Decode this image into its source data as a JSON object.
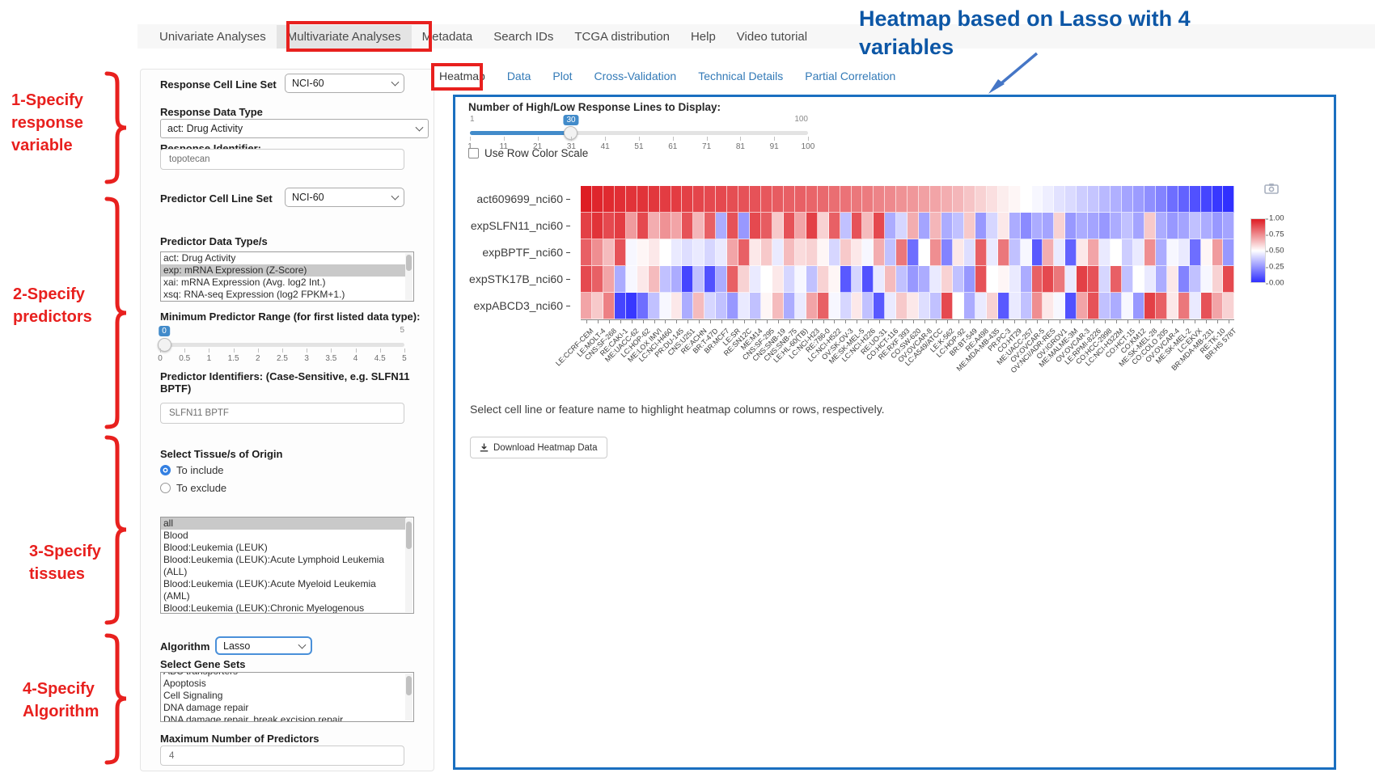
{
  "colors": {
    "accent_blue": "#337ab7",
    "slider_blue": "#428bca",
    "panel_border_blue": "#1a6fc0",
    "annotation_red": "#e8201e",
    "annotation_blue": "#0d57a6",
    "heatmap_max_red": "#de1c23",
    "heatmap_min_blue": "#3030ff"
  },
  "nav": {
    "items": [
      "Univariate Analyses",
      "Multivariate Analyses",
      "Metadata",
      "Search IDs",
      "TCGA distribution",
      "Help",
      "Video tutorial"
    ],
    "active_index": 1
  },
  "annotations": {
    "step1": "1-Specify\nresponse\nvariable",
    "step2": "2-Specify\npredictors",
    "step3": "3-Specify\ntissues",
    "step4": "4-Specify\nAlgorithm",
    "heatmap_note": "Heatmap based on Lasso with 4\nvariables"
  },
  "sidebar": {
    "response_cell_line_set": {
      "label": "Response Cell Line Set",
      "value": "NCI-60"
    },
    "response_data_type": {
      "label": "Response Data Type",
      "value": "act: Drug Activity"
    },
    "response_identifier": {
      "label": "Response Identifier:",
      "value": "topotecan"
    },
    "predictor_cell_line_set": {
      "label": "Predictor Cell Line Set",
      "value": "NCI-60"
    },
    "predictor_data_types": {
      "label": "Predictor Data Type/s",
      "options": [
        "act: Drug Activity",
        "exp: mRNA Expression (Z-Score)",
        "xai: mRNA Expression (Avg. log2 Int.)",
        "xsq: RNA-seq Expression (log2 FPKM+1.)"
      ],
      "selected": "exp: mRNA Expression (Z-Score)"
    },
    "min_predictor_range": {
      "label": "Minimum Predictor Range (for first listed data type):",
      "value": "0",
      "max_label": "5",
      "ticks": [
        "0",
        "0.5",
        "1",
        "1.5",
        "2",
        "2.5",
        "3",
        "3.5",
        "4",
        "4.5",
        "5"
      ]
    },
    "predictor_identifiers": {
      "label": "Predictor Identifiers: (Case-Sensitive, e.g. SLFN11 BPTF)",
      "value": "SLFN11 BPTF"
    },
    "tissue": {
      "label": "Select Tissue/s of Origin",
      "radios": [
        {
          "label": "To include",
          "selected": true
        },
        {
          "label": "To exclude",
          "selected": false
        }
      ],
      "options": [
        "all",
        "Blood",
        "Blood:Leukemia (LEUK)",
        "Blood:Leukemia (LEUK):Acute Lymphoid Leukemia (ALL)",
        "Blood:Leukemia (LEUK):Acute Myeloid Leukemia (AML)",
        "Blood:Leukemia (LEUK):Chronic Myelogenous Leukemia (CML)"
      ],
      "selected": "all"
    },
    "algorithm": {
      "label": "Algorithm",
      "value": "Lasso"
    },
    "gene_sets": {
      "label": "Select Gene Sets",
      "options": [
        "ABC transporters",
        "Apoptosis",
        "Cell Signaling",
        "DNA damage repair",
        "DNA damage repair, break excision repair"
      ],
      "first_clipped": true
    },
    "max_predictors": {
      "label": "Maximum Number of Predictors",
      "value": "4"
    }
  },
  "main": {
    "tabs": [
      "Heatmap",
      "Data",
      "Plot",
      "Cross-Validation",
      "Technical Details",
      "Partial Correlation"
    ],
    "active_tab_index": 0,
    "slider": {
      "label": "Number of High/Low Response Lines to Display:",
      "min_label": "1",
      "max_label": "100",
      "value": "30",
      "ticks": [
        "1",
        "11",
        "21",
        "31",
        "41",
        "51",
        "61",
        "71",
        "81",
        "91",
        "100"
      ]
    },
    "row_color_checkbox_label": "Use Row Color Scale",
    "note": "Select cell line or feature name to highlight heatmap columns or rows, respectively.",
    "download_button_label": "Download Heatmap Data",
    "camera_icon": "camera-icon"
  },
  "chart_data": {
    "type": "heatmap",
    "rows": [
      "act609699_nci60",
      "expSLFN11_nci60",
      "expBPTF_nci60",
      "expSTK17B_nci60",
      "expABCD3_nci60"
    ],
    "columns": [
      "LE:CCRF-CEM",
      "LE:MOLT-4",
      "CNS:SF-268",
      "RE:CAKI-1",
      "ME:UACC-62",
      "LC:HOP-62",
      "ME:LOX IMVI",
      "LC:NCI-H460",
      "PR:DU-145",
      "CNS:U251",
      "RE:ACHN",
      "BR:T-47D",
      "BR:MCF7",
      "LE:SR",
      "RE:SN12C",
      "ME:M14",
      "CNS:SF-295",
      "CNS:SNB-19",
      "CNS:SNB-75",
      "LE:HL-60(TB)",
      "LC:NCI-H23",
      "RE:786-0",
      "LC:NCI-H522",
      "OV:SK-OV-3",
      "ME:SK-MEL-5",
      "LC:NCI-H226",
      "RE:UO-31",
      "CO:HCT-116",
      "RE:RXF 393",
      "CO:SW-620",
      "OV:OVCAR-8",
      "LC:A549/ATCC",
      "LE:K-562",
      "LC:HOP-92",
      "BR:BT-549",
      "RE:A498",
      "ME:MDA-MB-435",
      "PR:PC-3",
      "CO:HT29",
      "ME:UACC-257",
      "OV:OVCAR-5",
      "OV:NCI/ADR-RES",
      "OV:IGROV1",
      "ME:MALME-3M",
      "OV:OVCAR-3",
      "LE:RPMI-8226",
      "CO:HCC-2998",
      "LC:NCI-H322M",
      "CO:HCT-15",
      "CO:KM12",
      "ME:SK-MEL-28",
      "CO:COLO 205",
      "OV:OVCAR-4",
      "ME:SK-MEL-2",
      "LC:EKVX",
      "BR:MDA-MB-231",
      "RE:TK-10",
      "BR:HS 578T"
    ],
    "values": [
      [
        1.0,
        0.98,
        0.97,
        0.96,
        0.95,
        0.95,
        0.94,
        0.93,
        0.93,
        0.92,
        0.91,
        0.9,
        0.9,
        0.89,
        0.88,
        0.88,
        0.87,
        0.86,
        0.85,
        0.85,
        0.84,
        0.83,
        0.82,
        0.81,
        0.8,
        0.79,
        0.77,
        0.76,
        0.74,
        0.73,
        0.71,
        0.7,
        0.68,
        0.66,
        0.63,
        0.6,
        0.57,
        0.54,
        0.52,
        0.5,
        0.48,
        0.46,
        0.43,
        0.41,
        0.38,
        0.36,
        0.33,
        0.31,
        0.28,
        0.26,
        0.23,
        0.2,
        0.15,
        0.12,
        0.08,
        0.05,
        0.02,
        0.0
      ],
      [
        0.92,
        0.95,
        0.9,
        0.93,
        0.72,
        0.9,
        0.68,
        0.74,
        0.7,
        0.88,
        0.66,
        0.85,
        0.3,
        0.88,
        0.25,
        0.9,
        0.86,
        0.62,
        0.88,
        0.7,
        0.92,
        0.6,
        0.85,
        0.35,
        0.88,
        0.65,
        0.9,
        0.3,
        0.4,
        0.68,
        0.28,
        0.66,
        0.3,
        0.35,
        0.62,
        0.25,
        0.4,
        0.55,
        0.3,
        0.22,
        0.3,
        0.28,
        0.6,
        0.25,
        0.3,
        0.28,
        0.25,
        0.3,
        0.35,
        0.28,
        0.62,
        0.3,
        0.25,
        0.28,
        0.35,
        0.3,
        0.25,
        0.28
      ],
      [
        0.85,
        0.75,
        0.65,
        0.88,
        0.48,
        0.52,
        0.55,
        0.5,
        0.45,
        0.42,
        0.45,
        0.4,
        0.45,
        0.7,
        0.85,
        0.55,
        0.62,
        0.45,
        0.65,
        0.58,
        0.6,
        0.52,
        0.4,
        0.62,
        0.55,
        0.48,
        0.68,
        0.35,
        0.8,
        0.15,
        0.5,
        0.75,
        0.2,
        0.55,
        0.42,
        0.85,
        0.45,
        0.8,
        0.35,
        0.48,
        0.1,
        0.68,
        0.45,
        0.12,
        0.55,
        0.7,
        0.45,
        0.5,
        0.38,
        0.45,
        0.75,
        0.3,
        0.48,
        0.45,
        0.15,
        0.52,
        0.72,
        0.25
      ],
      [
        0.9,
        0.85,
        0.7,
        0.3,
        0.48,
        0.55,
        0.65,
        0.35,
        0.3,
        0.05,
        0.35,
        0.08,
        0.3,
        0.85,
        0.6,
        0.45,
        0.5,
        0.55,
        0.4,
        0.48,
        0.35,
        0.6,
        0.52,
        0.1,
        0.4,
        0.08,
        0.45,
        0.65,
        0.35,
        0.25,
        0.3,
        0.45,
        0.6,
        0.35,
        0.25,
        0.88,
        0.5,
        0.52,
        0.45,
        0.3,
        0.85,
        0.9,
        0.8,
        0.45,
        0.92,
        0.88,
        0.4,
        0.85,
        0.35,
        0.5,
        0.45,
        0.3,
        0.55,
        0.2,
        0.35,
        0.48,
        0.6,
        0.9
      ],
      [
        0.7,
        0.62,
        0.78,
        0.05,
        0.02,
        0.15,
        0.35,
        0.48,
        0.55,
        0.3,
        0.65,
        0.4,
        0.35,
        0.25,
        0.45,
        0.35,
        0.52,
        0.65,
        0.3,
        0.45,
        0.7,
        0.85,
        0.48,
        0.4,
        0.55,
        0.35,
        0.1,
        0.45,
        0.62,
        0.55,
        0.42,
        0.35,
        0.9,
        0.5,
        0.3,
        0.45,
        0.6,
        0.1,
        0.45,
        0.35,
        0.75,
        0.55,
        0.48,
        0.08,
        0.7,
        0.88,
        0.35,
        0.3,
        0.48,
        0.25,
        0.92,
        0.85,
        0.55,
        0.8,
        0.45,
        0.88,
        0.7,
        0.6
      ]
    ],
    "zmin": 0,
    "zmax": 1,
    "colorscale": [
      [
        "0.00",
        "#3030ff"
      ],
      [
        "0.50",
        "#ffffff"
      ],
      [
        "1.00",
        "#de1c23"
      ]
    ],
    "legend_ticks": [
      "1.00",
      "0.75",
      "0.50",
      "0.25",
      "0.00"
    ],
    "legend_position": "right"
  }
}
